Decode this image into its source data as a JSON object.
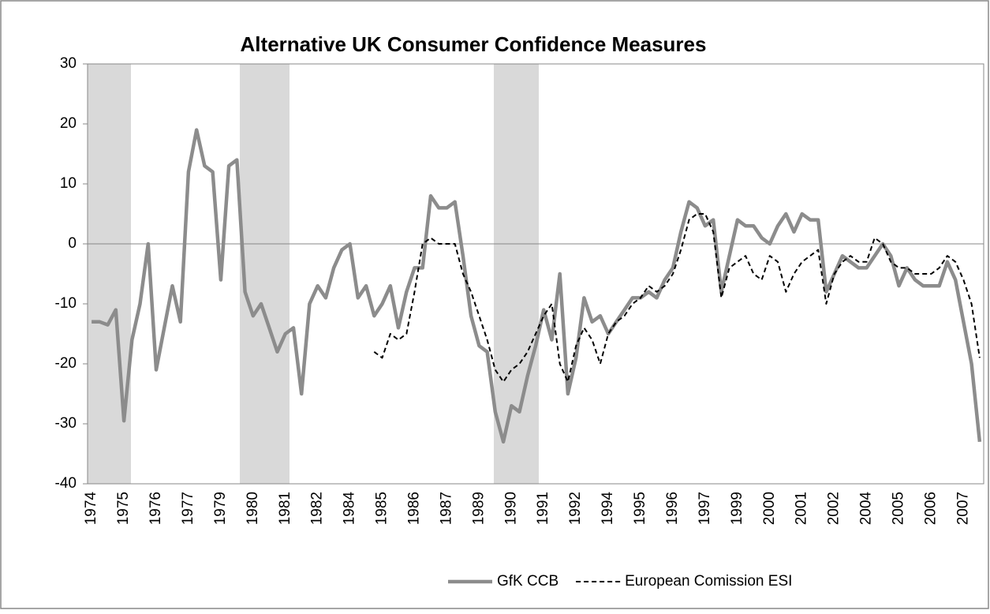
{
  "chart_data": {
    "type": "line",
    "title": "Alternative UK Consumer Confidence Measures",
    "categories": [
      "1974",
      null,
      null,
      null,
      "1975",
      null,
      null,
      null,
      "1976",
      null,
      null,
      null,
      "1977",
      null,
      null,
      null,
      "1979",
      null,
      null,
      null,
      "1980",
      null,
      null,
      null,
      "1981",
      null,
      null,
      null,
      "1982",
      null,
      null,
      null,
      "1984",
      null,
      null,
      null,
      "1985",
      null,
      null,
      null,
      "1986",
      null,
      null,
      null,
      "1987",
      null,
      null,
      null,
      "1989",
      null,
      null,
      null,
      "1990",
      null,
      null,
      null,
      "1991",
      null,
      null,
      null,
      "1992",
      null,
      null,
      null,
      "1994",
      null,
      null,
      null,
      "1995",
      null,
      null,
      null,
      "1996",
      null,
      null,
      null,
      "1997",
      null,
      null,
      null,
      "1999",
      null,
      null,
      null,
      "2000",
      null,
      null,
      null,
      "2001",
      null,
      null,
      null,
      "2002",
      null,
      null,
      null,
      "2004",
      null,
      null,
      null,
      "2005",
      null,
      null,
      null,
      "2006",
      null,
      null,
      null,
      "2007",
      null,
      null
    ],
    "series": [
      {
        "name": "GfK CCB",
        "color": "#8c8c8c",
        "values": [
          -13,
          -13,
          -13.5,
          -11,
          -29.5,
          -16,
          -10,
          0,
          -21,
          -14,
          -7,
          -13,
          12,
          19,
          13,
          12,
          -6,
          13,
          14,
          -8,
          -12,
          -10,
          -14,
          -18,
          -15,
          -14,
          -25,
          -10,
          -7,
          -9,
          -4,
          -1,
          0,
          -9,
          -7,
          -12,
          -10,
          -7,
          -14,
          -8,
          -4,
          -4,
          8,
          6,
          6,
          7,
          -2,
          -12,
          -17,
          -18,
          -28,
          -33,
          -27,
          -28,
          -22,
          -17,
          -11,
          -16,
          -5,
          -25,
          -19,
          -9,
          -13,
          -12,
          -15,
          -13,
          -11,
          -9,
          -9,
          -8,
          -9,
          -6,
          -4,
          2,
          7,
          6,
          3,
          4,
          -8,
          -2,
          4,
          3,
          3,
          1,
          0,
          3,
          5,
          2,
          5,
          4,
          4,
          -8,
          -5,
          -2,
          -3,
          -4,
          -4,
          -2,
          0,
          -2,
          -7,
          -4,
          -6,
          -7,
          -7,
          -7,
          -3,
          -6,
          -13,
          -20,
          -33
        ]
      },
      {
        "name": "European Comission ESI",
        "color": "#000000",
        "values": [
          null,
          null,
          null,
          null,
          null,
          null,
          null,
          null,
          null,
          null,
          null,
          null,
          null,
          null,
          null,
          null,
          null,
          null,
          null,
          null,
          null,
          null,
          null,
          null,
          null,
          null,
          null,
          null,
          null,
          null,
          null,
          null,
          null,
          null,
          null,
          -18,
          -19,
          -15,
          -16,
          -15,
          -8,
          0,
          1,
          0,
          0,
          0,
          -5,
          -8,
          -12,
          -16,
          -21,
          -23,
          -21,
          -20,
          -18,
          -15,
          -12,
          -10,
          -20,
          -23,
          -17,
          -14,
          -16,
          -20,
          -15,
          -13,
          -12,
          -10,
          -9,
          -7,
          -8,
          -7,
          -5,
          -1,
          4,
          5,
          5,
          2,
          -9,
          -4,
          -3,
          -2,
          -5,
          -6,
          -2,
          -3,
          -8,
          -5,
          -3,
          -2,
          -1,
          -10,
          -5,
          -3,
          -2,
          -3,
          -3,
          1,
          0,
          -3,
          -4,
          -4,
          -5,
          -5,
          -5,
          -4,
          -2,
          -3,
          -6,
          -10,
          -19
        ]
      }
    ],
    "ylim": [
      -40,
      30
    ],
    "yticks": [
      -40,
      -30,
      -20,
      -10,
      0,
      10,
      20,
      30
    ],
    "grid": false,
    "legend": "bottom"
  }
}
